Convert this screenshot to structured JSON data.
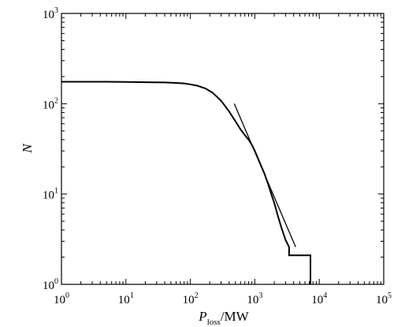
{
  "chart_data": {
    "type": "line",
    "title": "",
    "xlabel": {
      "symbol": "P",
      "subscript": "loss",
      "unit": "/MW"
    },
    "ylabel": "N",
    "xscale": "log",
    "yscale": "log",
    "xlim": [
      1,
      100000
    ],
    "ylim": [
      1,
      1000
    ],
    "grid": false,
    "x_tick_labels": [
      {
        "value": 1,
        "base": "10",
        "exp": "0"
      },
      {
        "value": 10,
        "base": "10",
        "exp": "1"
      },
      {
        "value": 100,
        "base": "10",
        "exp": "2"
      },
      {
        "value": 1000,
        "base": "10",
        "exp": "3"
      },
      {
        "value": 10000,
        "base": "10",
        "exp": "4"
      },
      {
        "value": 100000,
        "base": "10",
        "exp": "5"
      }
    ],
    "y_tick_labels": [
      {
        "value": 1,
        "base": "10",
        "exp": "0"
      },
      {
        "value": 10,
        "base": "10",
        "exp": "1"
      },
      {
        "value": 100,
        "base": "10",
        "exp": "2"
      },
      {
        "value": 1000,
        "base": "10",
        "exp": "3"
      }
    ],
    "series": [
      {
        "kind": "step-curve",
        "color": "#000000",
        "x": [
          1,
          5,
          10,
          20,
          40,
          60,
          80,
          100,
          130,
          170,
          220,
          300,
          400,
          500,
          600,
          700,
          800,
          900,
          1000,
          1200,
          1400,
          1600,
          1800,
          2000,
          2300,
          2600,
          3000,
          3400,
          3400,
          7300,
          7300
        ],
        "y": [
          175,
          175,
          174,
          173,
          172,
          170,
          168,
          164,
          158,
          148,
          133,
          108,
          82,
          64,
          52,
          45,
          40,
          35,
          30,
          22,
          17,
          13,
          10,
          8,
          5.6,
          4.2,
          3.1,
          2.6,
          2.1,
          2.1,
          1
        ]
      },
      {
        "kind": "power-law-fit",
        "color": "#000000",
        "x": [
          480,
          4300
        ],
        "y": [
          100,
          2.6
        ]
      }
    ]
  }
}
